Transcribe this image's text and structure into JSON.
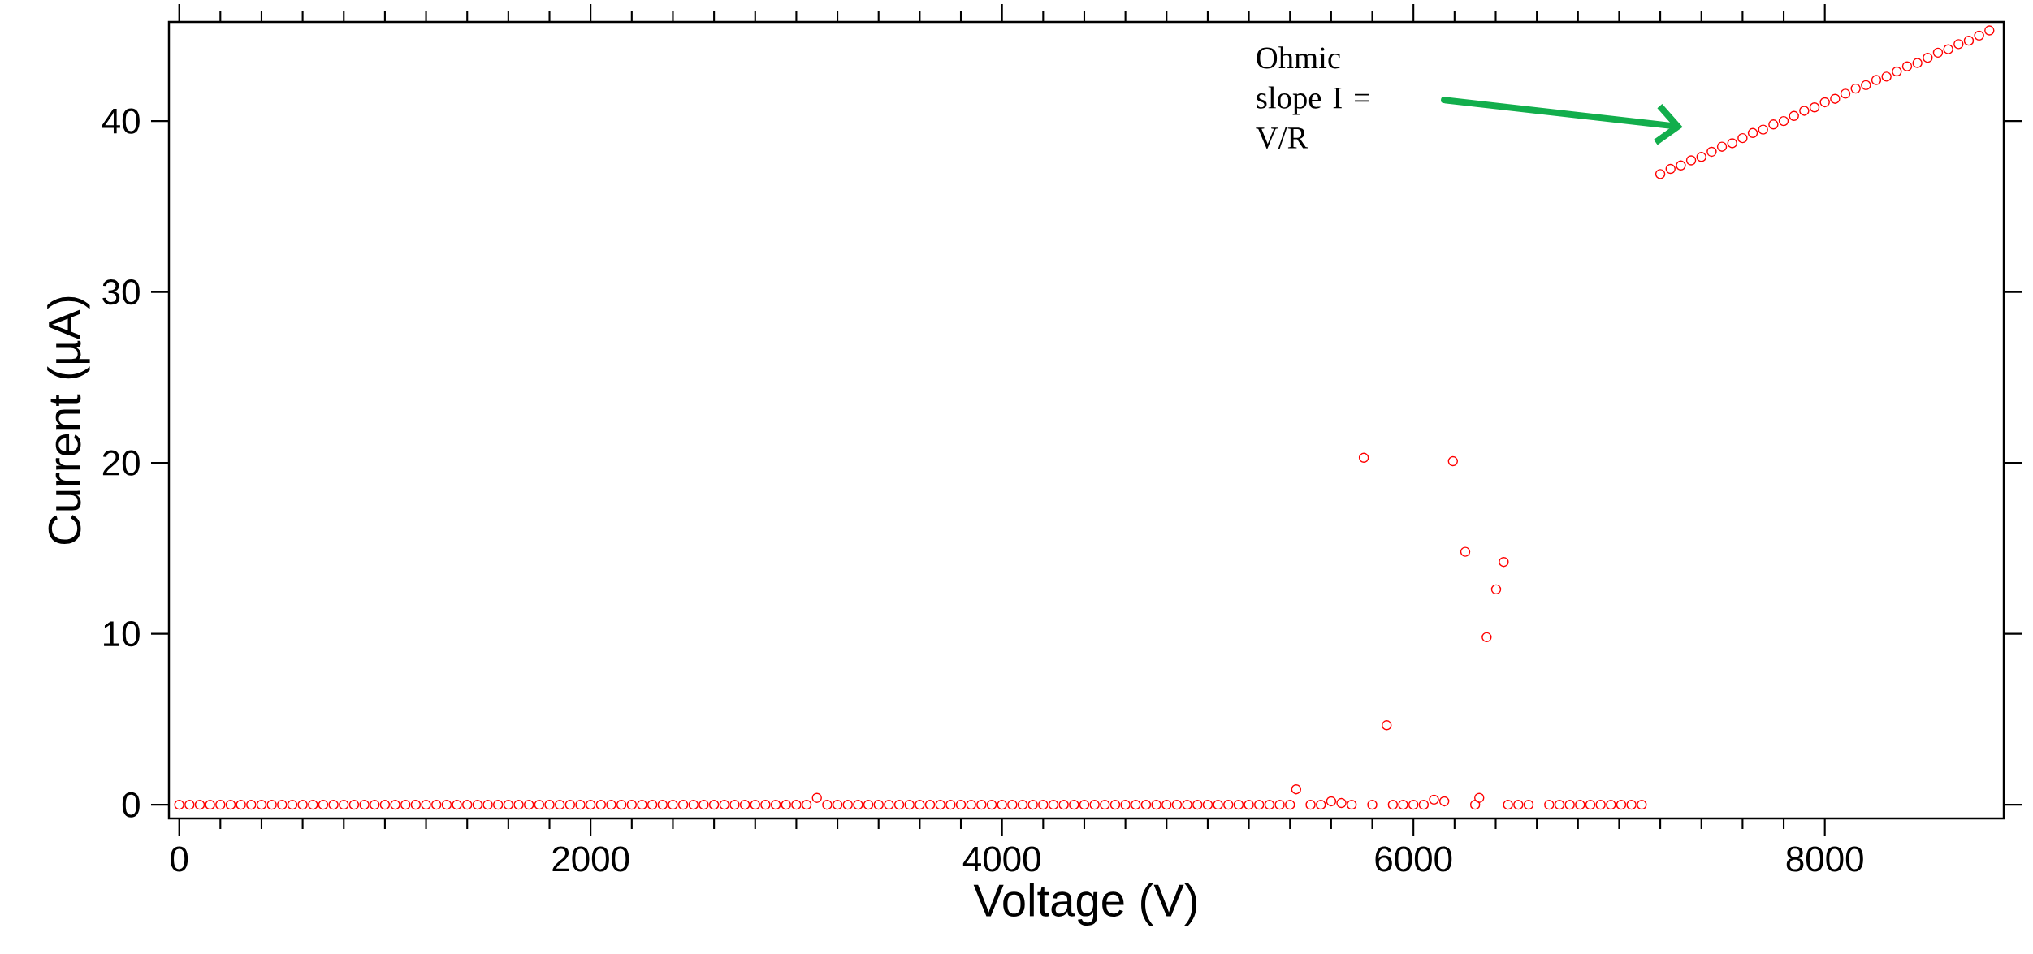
{
  "chart_data": {
    "type": "scatter",
    "xlabel": "Voltage (V)",
    "ylabel": "Current (µA)",
    "color": "#ff0000",
    "marker": "circle",
    "x": [
      0,
      50,
      100,
      150,
      200,
      250,
      300,
      350,
      400,
      450,
      500,
      550,
      600,
      650,
      700,
      750,
      800,
      850,
      900,
      950,
      1000,
      1050,
      1100,
      1150,
      1200,
      1250,
      1300,
      1350,
      1400,
      1450,
      1500,
      1550,
      1600,
      1650,
      1700,
      1750,
      1800,
      1850,
      1900,
      1950,
      2000,
      2050,
      2100,
      2150,
      2200,
      2250,
      2300,
      2350,
      2400,
      2450,
      2500,
      2550,
      2600,
      2650,
      2700,
      2750,
      2800,
      2850,
      2900,
      2950,
      3000,
      3050,
      3100,
      3150,
      3200,
      3250,
      3300,
      3350,
      3400,
      3450,
      3500,
      3550,
      3600,
      3650,
      3700,
      3750,
      3800,
      3850,
      3900,
      3950,
      4000,
      4050,
      4100,
      4150,
      4200,
      4250,
      4300,
      4350,
      4400,
      4450,
      4500,
      4550,
      4600,
      4650,
      4700,
      4750,
      4800,
      4850,
      4900,
      4950,
      5000,
      5050,
      5100,
      5150,
      5200,
      5250,
      5300,
      5350,
      5400,
      5430,
      5500,
      5550,
      5600,
      5650,
      5700,
      5759,
      5800,
      5870,
      5900,
      5950,
      6000,
      6050,
      6100,
      6150,
      6192,
      6252,
      6300,
      6320,
      6356,
      6402,
      6439,
      6460,
      6510,
      6560,
      6660,
      6710,
      6760,
      6810,
      6860,
      6910,
      6960,
      7010,
      7060,
      7110,
      7200,
      7250,
      7300,
      7350,
      7400,
      7450,
      7500,
      7550,
      7600,
      7650,
      7700,
      7750,
      7800,
      7850,
      7900,
      7950,
      8000,
      8050,
      8100,
      8150,
      8200,
      8250,
      8300,
      8350,
      8400,
      8450,
      8500,
      8550,
      8600,
      8650,
      8700,
      8750,
      8800
    ],
    "values": [
      0,
      0,
      0,
      0,
      0,
      0,
      0,
      0,
      0,
      0,
      0,
      0,
      0,
      0,
      0,
      0,
      0,
      0,
      0,
      0,
      0,
      0,
      0,
      0,
      0,
      0,
      0,
      0,
      0,
      0,
      0,
      0,
      0,
      0,
      0,
      0,
      0,
      0,
      0,
      0,
      0,
      0,
      0,
      0,
      0,
      0,
      0,
      0,
      0,
      0,
      0,
      0,
      0,
      0,
      0,
      0,
      0,
      0,
      0,
      0,
      0,
      0,
      0.4,
      0,
      0,
      0,
      0,
      0,
      0,
      0,
      0,
      0,
      0,
      0,
      0,
      0,
      0,
      0,
      0,
      0,
      0,
      0,
      0,
      0,
      0,
      0,
      0,
      0,
      0,
      0,
      0,
      0,
      0,
      0,
      0,
      0,
      0,
      0,
      0,
      0,
      0,
      0,
      0,
      0,
      0,
      0,
      0,
      0,
      0,
      0.9,
      0,
      0,
      0.2,
      0.1,
      0,
      20.3,
      0,
      4.65,
      0,
      0,
      0,
      0,
      0.3,
      0.2,
      20.1,
      14.8,
      0,
      0.4,
      9.8,
      12.6,
      14.2,
      0,
      0,
      0,
      0,
      0,
      0,
      0,
      0,
      0,
      0,
      0,
      0,
      0,
      36.9,
      37.2,
      37.4,
      37.7,
      37.9,
      38.2,
      38.5,
      38.7,
      39.0,
      39.3,
      39.5,
      39.8,
      40.0,
      40.3,
      40.6,
      40.8,
      41.1,
      41.3,
      41.6,
      41.9,
      42.1,
      42.4,
      42.6,
      42.9,
      43.2,
      43.4,
      43.7,
      44.0,
      44.2,
      44.5,
      44.7,
      45.0,
      45.3
    ],
    "xlim": [
      -50,
      8870
    ],
    "ylim": [
      -0.8,
      45.8
    ],
    "xticks": [
      0,
      2000,
      4000,
      6000,
      8000
    ],
    "yticks": [
      0,
      10,
      20,
      30,
      40
    ],
    "annotations": [
      "Ohmic slope I = V/R"
    ]
  }
}
